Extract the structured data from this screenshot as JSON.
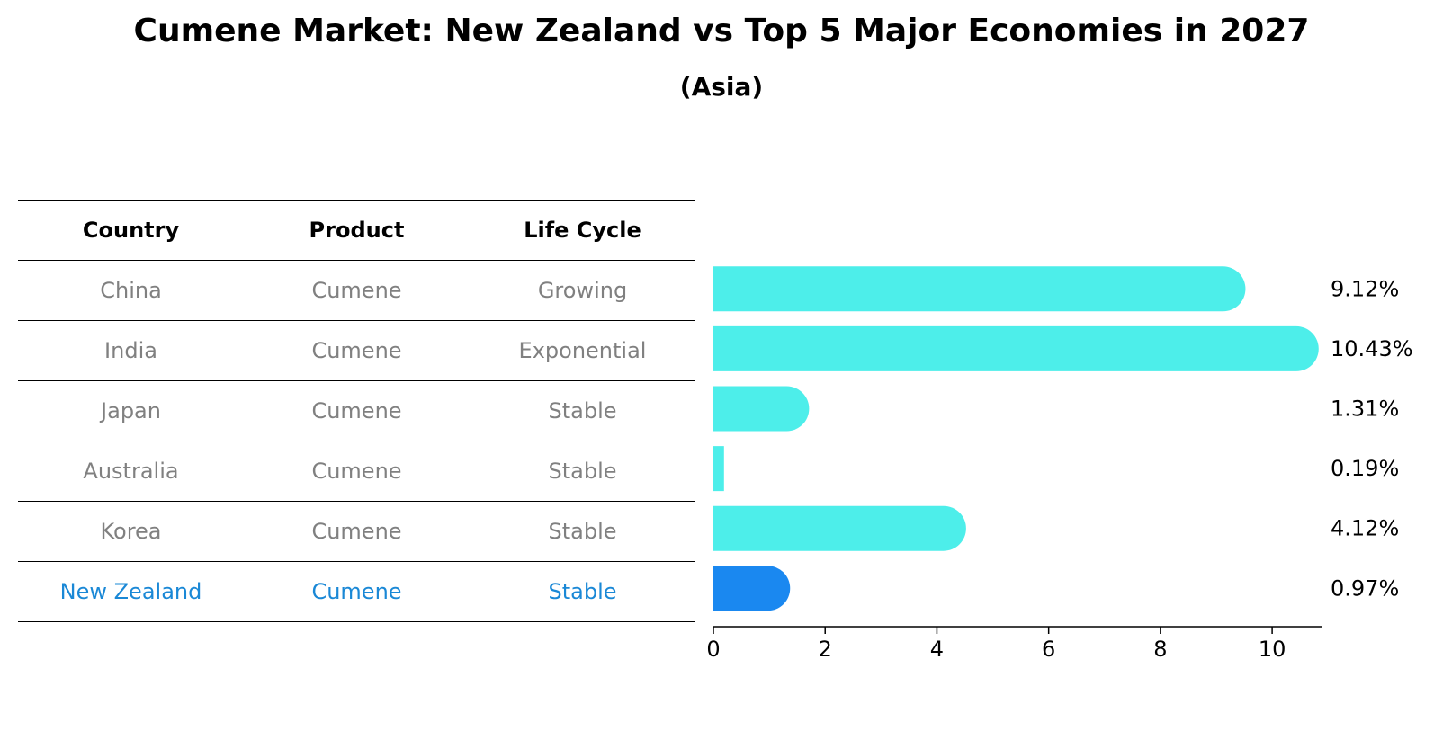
{
  "title": "Cumene Market: New Zealand vs Top 5 Major Economies in 2027",
  "subtitle": "(Asia)",
  "table": {
    "headers": [
      "Country",
      "Product",
      "Life Cycle"
    ],
    "rows": [
      [
        "China",
        "Cumene",
        "Growing"
      ],
      [
        "India",
        "Cumene",
        "Exponential"
      ],
      [
        "Japan",
        "Cumene",
        "Stable"
      ],
      [
        "Australia",
        "Cumene",
        "Stable"
      ],
      [
        "Korea",
        "Cumene",
        "Stable"
      ],
      [
        "New Zealand",
        "Cumene",
        "Stable"
      ]
    ],
    "highlight_row": 5
  },
  "colors": {
    "bar": "#4DEEEA",
    "highlight": "#1A88F0",
    "highlight_text": "#1A88D6",
    "muted_text": "#808080"
  },
  "chart_data": {
    "type": "bar",
    "orientation": "horizontal",
    "categories": [
      "China",
      "India",
      "Japan",
      "Australia",
      "Korea",
      "New Zealand"
    ],
    "values": [
      9.12,
      10.43,
      1.31,
      0.19,
      4.12,
      0.97
    ],
    "value_labels": [
      "9.12%",
      "10.43%",
      "1.31%",
      "0.19%",
      "4.12%",
      "0.97%"
    ],
    "highlight_index": 5,
    "xlim": [
      0,
      10.9
    ],
    "xticks": [
      0,
      2,
      4,
      6,
      8,
      10
    ],
    "xtick_labels": [
      "0",
      "2",
      "4",
      "6",
      "8",
      "10"
    ],
    "xlabel": "",
    "ylabel": ""
  }
}
